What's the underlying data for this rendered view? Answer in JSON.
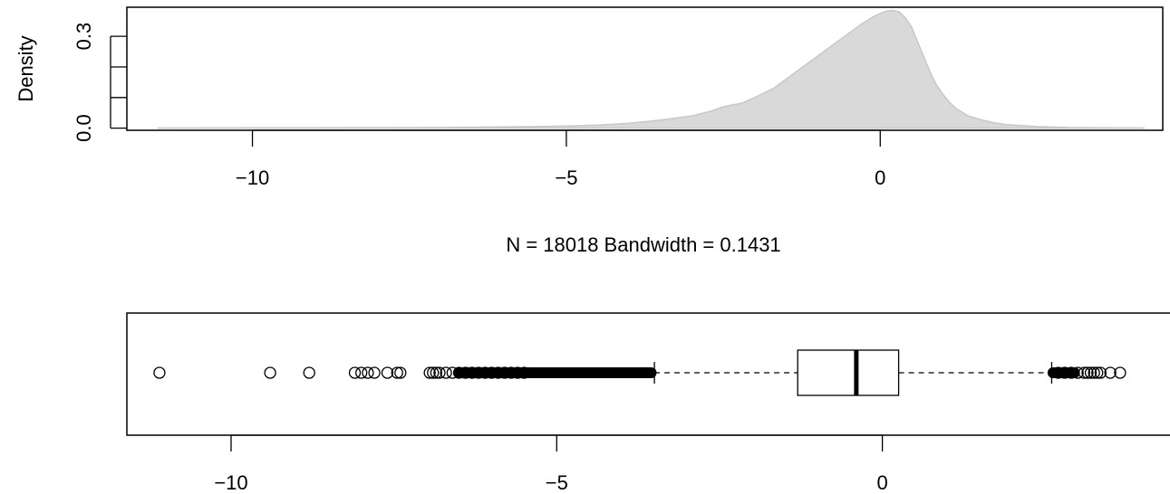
{
  "chart_data": [
    {
      "type": "area",
      "title": "",
      "xlabel": "N = 18018   Bandwidth = 0.1431",
      "ylabel": "Density",
      "xlim": [
        -12.0,
        4.5
      ],
      "ylim": [
        -0.007,
        0.395
      ],
      "x_ticks": [
        -10,
        -5,
        0
      ],
      "x_tick_labels": [
        "−10",
        "−5",
        "0"
      ],
      "y_ticks": [
        0.0,
        0.1,
        0.2,
        0.3
      ],
      "y_tick_labels": [
        "0.0",
        "0.3"
      ],
      "fill_color": "#d9d9d9",
      "line_color": "#c8c8c8",
      "series": [
        {
          "x": [
            -11.5,
            -10,
            -9,
            -8,
            -7,
            -6.5,
            -6,
            -5.5,
            -5,
            -4.5,
            -4,
            -3.5,
            -3,
            -2.7,
            -2.5,
            -2.2,
            -2,
            -1.7,
            -1.5,
            -1.3,
            -1.1,
            -0.9,
            -0.7,
            -0.5,
            -0.3,
            -0.1,
            0,
            0.1,
            0.2,
            0.3,
            0.4,
            0.5,
            0.6,
            0.7,
            0.8,
            0.9,
            1.0,
            1.1,
            1.2,
            1.4,
            1.6,
            1.8,
            2.0,
            2.5,
            3.0,
            3.5,
            4.2
          ],
          "y": [
            0.0005,
            0.001,
            0.0012,
            0.0015,
            0.002,
            0.003,
            0.004,
            0.005,
            0.007,
            0.01,
            0.016,
            0.026,
            0.04,
            0.055,
            0.07,
            0.082,
            0.1,
            0.13,
            0.16,
            0.19,
            0.22,
            0.25,
            0.28,
            0.31,
            0.34,
            0.365,
            0.375,
            0.382,
            0.385,
            0.38,
            0.36,
            0.33,
            0.28,
            0.23,
            0.18,
            0.14,
            0.11,
            0.085,
            0.065,
            0.04,
            0.028,
            0.018,
            0.012,
            0.005,
            0.002,
            0.001,
            0.0003
          ]
        }
      ]
    },
    {
      "type": "boxplot",
      "title": "",
      "xlabel": "",
      "ylabel": "",
      "xlim": [
        -11.6,
        4.5
      ],
      "x_ticks": [
        -10,
        -5,
        0
      ],
      "x_tick_labels": [
        "−10",
        "−5",
        "0"
      ],
      "box": {
        "lower_whisker": -3.5,
        "q1": -1.3,
        "median": -0.4,
        "q3": 0.25,
        "upper_whisker": 2.6
      },
      "outliers": {
        "points": [
          -11.1,
          -9.4,
          -8.8,
          -8.1,
          -8.0,
          -7.9,
          -7.8,
          -7.6,
          -7.45,
          -7.4,
          -6.95,
          -6.9,
          -6.85,
          -6.8,
          -6.7,
          -6.6,
          -6.5,
          -6.4,
          -6.3,
          -6.2,
          -6.1,
          -6.0,
          -5.9,
          -5.8,
          -5.7,
          -5.6,
          -5.5,
          2.7,
          2.8,
          2.9,
          3.0,
          3.1,
          3.15,
          3.2,
          3.25,
          3.3,
          3.35,
          3.5,
          3.65
        ],
        "dense_ranges": [
          [
            -6.5,
            -3.55
          ],
          [
            2.62,
            2.95
          ]
        ]
      }
    }
  ]
}
